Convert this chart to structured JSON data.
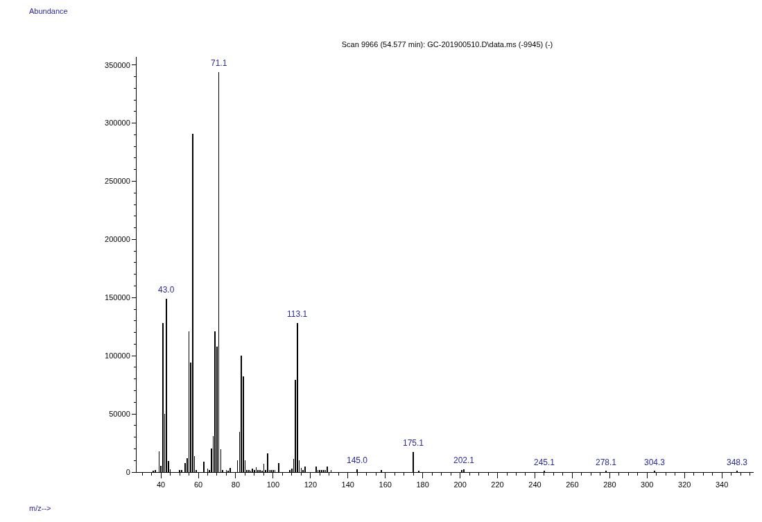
{
  "chart_data": {
    "type": "bar",
    "title": "Scan 9966 (54.577 min): GC-201900510.D\\data.ms (-9945) (-)",
    "x": [
      36,
      37,
      39,
      40,
      41,
      42,
      43,
      44,
      45,
      50,
      51,
      53,
      54,
      55,
      56,
      57,
      58,
      59,
      63,
      65,
      66,
      67,
      68,
      69,
      70,
      71,
      72,
      73,
      75,
      76,
      77,
      81,
      82,
      83,
      84,
      85,
      86,
      87,
      88,
      89,
      90,
      91,
      92,
      93,
      94,
      95,
      96,
      97,
      98,
      99,
      100,
      101,
      103,
      109,
      110,
      111,
      112,
      113,
      114,
      115,
      116,
      117,
      123,
      124,
      125,
      126,
      127,
      128,
      129,
      131,
      145,
      158,
      175,
      178,
      201,
      202,
      245,
      278,
      304,
      348
    ],
    "values": [
      1000,
      1500,
      17800,
      5400,
      128000,
      50000,
      149000,
      9700,
      2600,
      1500,
      1500,
      7700,
      12000,
      121000,
      94000,
      291000,
      14000,
      2000,
      9000,
      3000,
      1500,
      20000,
      31000,
      121000,
      108000,
      344000,
      19600,
      2000,
      1500,
      1000,
      3300,
      10000,
      34500,
      100000,
      82500,
      10000,
      1500,
      1500,
      1000,
      2700,
      2000,
      4000,
      1500,
      2000,
      1000,
      7000,
      2000,
      16000,
      1500,
      1500,
      1500,
      1500,
      8000,
      2000,
      3200,
      11300,
      79000,
      128000,
      10000,
      3500,
      1500,
      5000,
      4800,
      1500,
      2000,
      1500,
      1500,
      1500,
      4800,
      1500,
      2600,
      1500,
      17300,
      1200,
      1500,
      2400,
      800,
      800,
      800,
      800
    ],
    "color": "#000000",
    "xlim": [
      27,
      357
    ],
    "xticks": [
      40,
      60,
      80,
      100,
      120,
      140,
      160,
      180,
      200,
      220,
      240,
      260,
      280,
      300,
      320,
      340
    ],
    "ylim": [
      0,
      357000
    ],
    "yticks": [
      0,
      50000,
      100000,
      150000,
      200000,
      250000,
      300000,
      350000
    ],
    "annotations": [
      "Abundance",
      {
        "text": "43.0",
        "x": 43,
        "y": 149000
      },
      {
        "text": "71.1",
        "x": 71,
        "y": 344000
      },
      {
        "text": "113.1",
        "x": 113,
        "y": 128000
      },
      {
        "text": "145.0",
        "x": 145,
        "y": 2600
      },
      {
        "text": "175.1",
        "x": 175,
        "y": 17300
      },
      {
        "text": "202.1",
        "x": 202,
        "y": 2400
      },
      {
        "text": "245.1",
        "x": 245,
        "y": 800
      },
      {
        "text": "278.1",
        "x": 278,
        "y": 800
      },
      {
        "text": "304.3",
        "x": 304,
        "y": 800
      },
      {
        "text": "348.3",
        "x": 348,
        "y": 800
      },
      "m/z-->"
    ]
  }
}
